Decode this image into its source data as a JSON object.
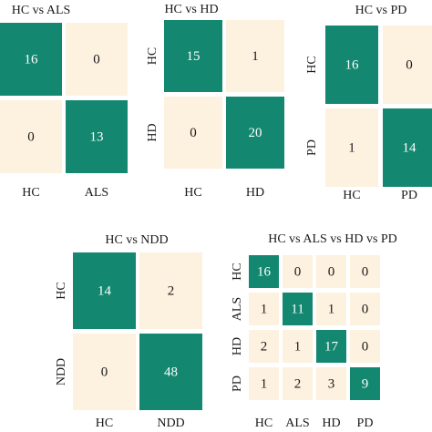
{
  "chart_data": [
    {
      "type": "heatmap",
      "title": "HC vs ALS",
      "x_categories": [
        "HC",
        "ALS"
      ],
      "values": [
        [
          16,
          0
        ],
        [
          0,
          13
        ]
      ],
      "colors": {
        "diagonal": "#13876f",
        "off_diagonal": "#fdf1df"
      }
    },
    {
      "type": "heatmap",
      "title": "HC vs HD",
      "x_categories": [
        "HC",
        "HD"
      ],
      "y_categories": [
        "HC",
        "HD"
      ],
      "values": [
        [
          15,
          1
        ],
        [
          0,
          20
        ]
      ],
      "colors": {
        "diagonal": "#13876f",
        "off_diagonal": "#fdf1df"
      }
    },
    {
      "type": "heatmap",
      "title": "HC vs PD",
      "x_categories": [
        "HC",
        "PD"
      ],
      "y_categories": [
        "HC",
        "PD"
      ],
      "values": [
        [
          16,
          0
        ],
        [
          1,
          14
        ]
      ],
      "colors": {
        "diagonal": "#13876f",
        "off_diagonal": "#fdf1df"
      }
    },
    {
      "type": "heatmap",
      "title": "HC vs NDD",
      "x_categories": [
        "HC",
        "NDD"
      ],
      "y_categories": [
        "HC",
        "NDD"
      ],
      "values": [
        [
          14,
          2
        ],
        [
          0,
          48
        ]
      ],
      "colors": {
        "diagonal": "#13876f",
        "off_diagonal": "#fdf1df"
      }
    },
    {
      "type": "heatmap",
      "title": "HC vs ALS vs HD vs PD",
      "x_categories": [
        "HC",
        "ALS",
        "HD",
        "PD"
      ],
      "y_categories": [
        "HC",
        "ALS",
        "HD",
        "PD"
      ],
      "values": [
        [
          16,
          0,
          0,
          0
        ],
        [
          1,
          11,
          1,
          0
        ],
        [
          2,
          1,
          17,
          0
        ],
        [
          1,
          2,
          3,
          9
        ]
      ],
      "colors": {
        "diagonal": "#13876f",
        "off_diagonal": "#fdf1df"
      }
    }
  ]
}
